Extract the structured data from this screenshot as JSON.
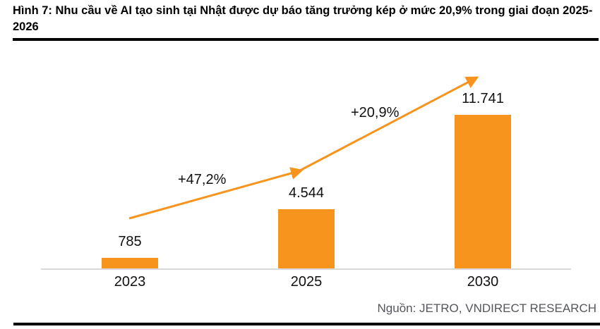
{
  "title": "Hình 7: Nhu cầu về AI tạo sinh tại Nhật được dự báo tăng trưởng kép ở mức 20,9% trong giai đoạn 2025-2026",
  "source": "Nguồn: JETRO, VNDIRECT RESEARCH",
  "colors": {
    "bar": "#F7941E",
    "arrow": "#F7941E",
    "axis": "#D9D9D9",
    "source-text": "#54565B"
  },
  "chart_data": {
    "type": "bar",
    "categories": [
      "2023",
      "2025",
      "2030"
    ],
    "values": [
      785,
      4544,
      11741
    ],
    "value_labels": [
      "785",
      "4.544",
      "11.741"
    ],
    "growth_labels": [
      "+47,2%",
      "+20,9%"
    ],
    "title": "Hình 7: Nhu cầu về AI tạo sinh tại Nhật được dự báo tăng trưởng kép ở mức 20,9% trong giai đoạn 2025-2026",
    "xlabel": "",
    "ylabel": "",
    "ylim": [
      0,
      12000
    ],
    "grid": false,
    "legend": false,
    "annotations": "orange growth trend arrow from 2023 bar through 2025 to 2030 with arrowheads"
  }
}
